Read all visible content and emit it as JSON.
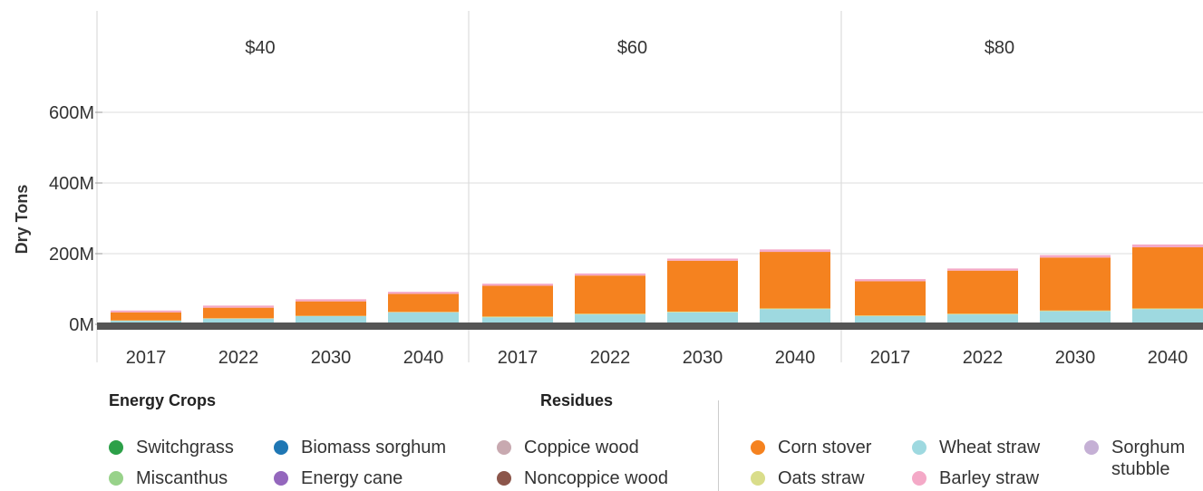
{
  "chart_data": {
    "type": "bar",
    "stacked": true,
    "ylabel": "Dry Tons",
    "ylim": [
      0,
      700000000
    ],
    "y_ticks": [
      {
        "value": 0,
        "label": "0M"
      },
      {
        "value": 200000000,
        "label": "200M"
      },
      {
        "value": 400000000,
        "label": "400M"
      },
      {
        "value": 600000000,
        "label": "600M"
      }
    ],
    "facets": [
      "$40",
      "$60",
      "$80"
    ],
    "categories": [
      "2017",
      "2022",
      "2030",
      "2040"
    ],
    "series": [
      {
        "name": "Wheat straw",
        "color": "#9ed9e0",
        "values": [
          [
            10,
            16,
            23,
            34
          ],
          [
            20,
            28,
            34,
            43
          ],
          [
            23,
            28,
            37,
            43
          ]
        ]
      },
      {
        "name": "Oats straw",
        "color": "#d9dd8a",
        "values": [
          [
            1,
            1,
            1,
            1
          ],
          [
            2,
            2,
            2,
            2
          ],
          [
            2,
            2,
            2,
            2
          ]
        ]
      },
      {
        "name": "Corn stover",
        "color": "#f5821f",
        "values": [
          [
            23,
            30,
            41,
            51
          ],
          [
            87,
            108,
            144,
            160
          ],
          [
            97,
            122,
            150,
            173
          ]
        ]
      },
      {
        "name": "Barley straw",
        "color": "#f4a9c7",
        "values": [
          [
            5,
            6,
            6,
            6
          ],
          [
            6,
            6,
            6,
            7
          ],
          [
            6,
            6,
            7,
            8
          ]
        ]
      }
    ],
    "value_unit": "M dry tons",
    "grid": true
  },
  "legend": {
    "energy_heading": "Energy Crops",
    "residues_heading": "Residues",
    "items": [
      {
        "label": "Switchgrass",
        "color": "#2ca048"
      },
      {
        "label": "Miscanthus",
        "color": "#98d28a"
      },
      {
        "label": "Biomass sorghum",
        "color": "#1f77b4"
      },
      {
        "label": "Energy cane",
        "color": "#9467bd"
      },
      {
        "label": "Coppice wood",
        "color": "#c8a9b0"
      },
      {
        "label": "Noncoppice wood",
        "color": "#8c564b"
      },
      {
        "label": "Corn stover",
        "color": "#f5821f"
      },
      {
        "label": "Oats straw",
        "color": "#d9dd8a"
      },
      {
        "label": "Wheat straw",
        "color": "#9ed9e0"
      },
      {
        "label": "Barley straw",
        "color": "#f4a9c7"
      },
      {
        "label": "Sorghum stubble",
        "color": "#c5b0d5"
      }
    ]
  }
}
